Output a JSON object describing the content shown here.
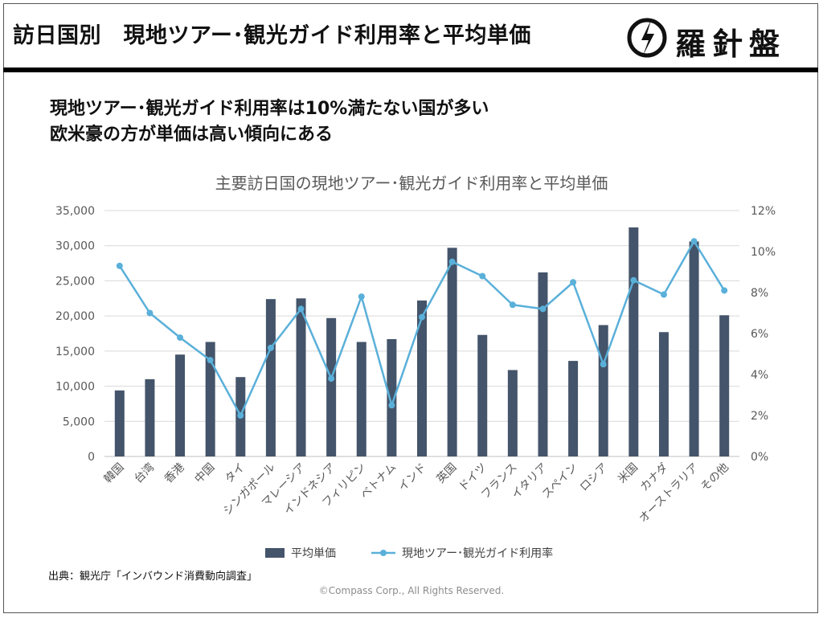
{
  "header": {
    "title": "訪日国別　現地ツアー･観光ガイド利用率と平均単価",
    "logo_text": "羅針盤"
  },
  "headline": {
    "line1": "現地ツアー･観光ガイド利用率は10%満たない国が多い",
    "line2": "欧米豪の方が単価は高い傾向にある"
  },
  "footer": {
    "source": "出典：観光庁「インバウンド消費動向調査」",
    "copyright": "©Compass Corp., All Rights Reserved."
  },
  "colors": {
    "bar": "#44546a",
    "line": "#5ab0d9",
    "grid": "#d9d9d9",
    "axis_text": "#595959"
  },
  "chart_data": {
    "type": "bar",
    "title": "主要訪日国の現地ツアー･観光ガイド利用率と平均単価",
    "categories": [
      "韓国",
      "台湾",
      "香港",
      "中国",
      "タイ",
      "シンガポール",
      "マレーシア",
      "インドネシア",
      "フィリピン",
      "ベトナム",
      "インド",
      "英国",
      "ドイツ",
      "フランス",
      "イタリア",
      "スペイン",
      "ロシア",
      "米国",
      "カナダ",
      "オーストラリア",
      "その他"
    ],
    "series": [
      {
        "name": "平均単価",
        "type": "bar",
        "axis": "left",
        "values": [
          9400,
          11000,
          14500,
          16300,
          11300,
          22400,
          22500,
          19700,
          16300,
          16700,
          22200,
          29700,
          17300,
          12300,
          26200,
          13600,
          18700,
          32600,
          17700,
          30600,
          20100
        ]
      },
      {
        "name": "現地ツアー･観光ガイド利用率",
        "type": "line",
        "axis": "right",
        "values": [
          9.3,
          7.0,
          5.8,
          4.7,
          2.0,
          5.3,
          7.2,
          3.8,
          7.8,
          2.5,
          6.8,
          9.5,
          8.8,
          7.4,
          7.2,
          8.5,
          4.5,
          8.6,
          7.9,
          10.5,
          8.1
        ]
      }
    ],
    "ylim_left": [
      0,
      35000
    ],
    "yticks_left": [
      "0",
      "5,000",
      "10,000",
      "15,000",
      "20,000",
      "25,000",
      "30,000",
      "35,000"
    ],
    "ylim_right": [
      0,
      12
    ],
    "yticks_right": [
      "0%",
      "2%",
      "4%",
      "6%",
      "8%",
      "10%",
      "12%"
    ],
    "grid": true,
    "legend": "bottom"
  }
}
